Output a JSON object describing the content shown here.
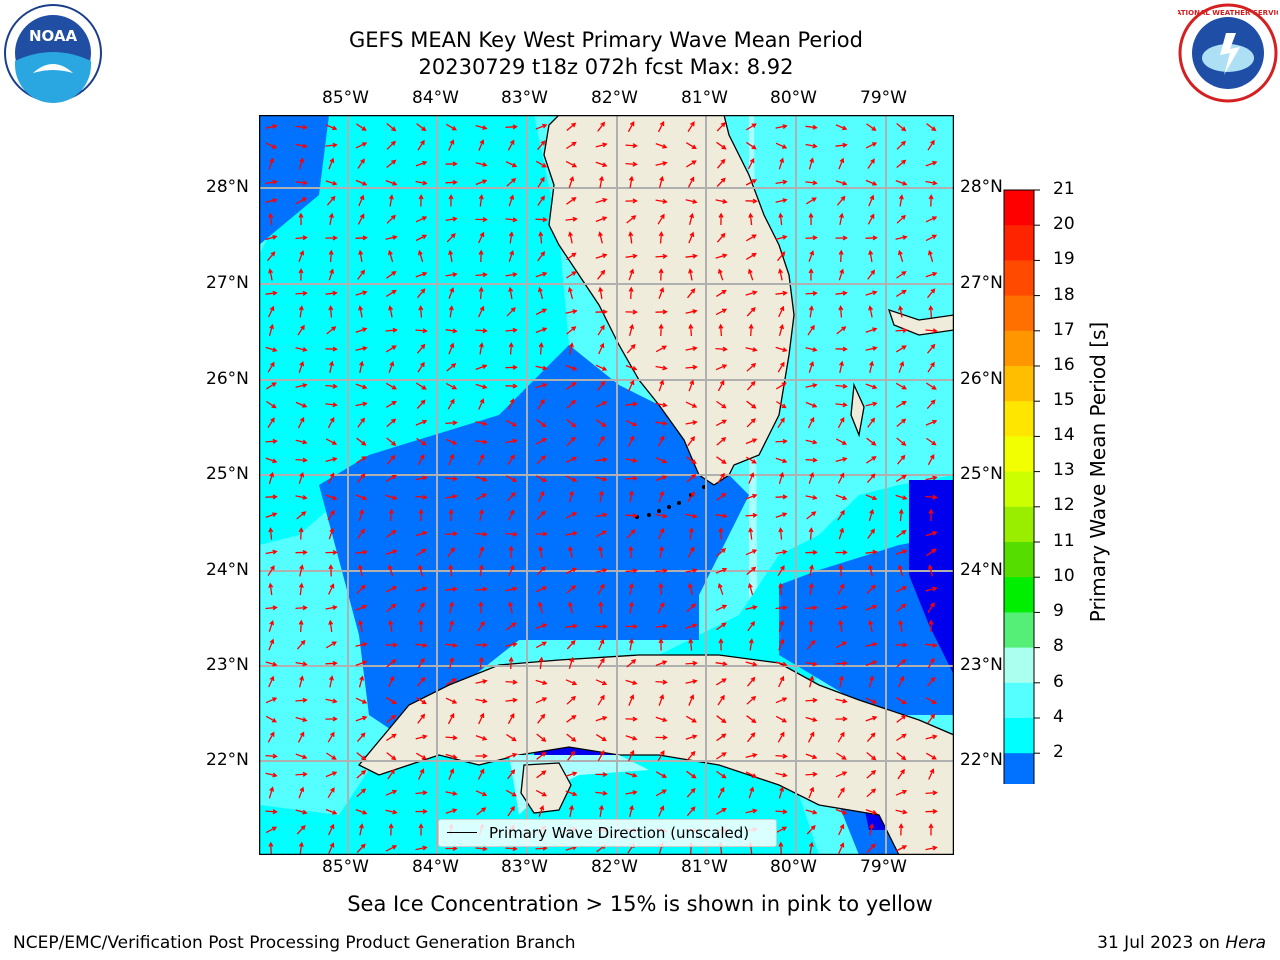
{
  "title": {
    "line1": "GEFS MEAN Key West Primary Wave Mean Period",
    "line2": "20230729 t18z 072h fcst   Max: 8.92"
  },
  "logos": {
    "left": {
      "icon": "noaa-logo",
      "text": "NOAA"
    },
    "right": {
      "icon": "nws-logo",
      "text": "NATIONAL WEATHER SERVICE"
    }
  },
  "map": {
    "lon_labels": [
      "85°W",
      "84°W",
      "83°W",
      "82°W",
      "81°W",
      "80°W",
      "79°W"
    ],
    "lat_labels": [
      "28°N",
      "27°N",
      "26°N",
      "25°N",
      "24°N",
      "23°N",
      "22°N"
    ],
    "colors": {
      "land": "#efecdc",
      "arrow": "#ff0000",
      "grid": "#b0b0b0"
    },
    "legend_label": "Primary Wave Direction (unscaled)"
  },
  "colorbar": {
    "label": "Primary Wave Mean Period [s]",
    "ticks": [
      "21",
      "20",
      "19",
      "18",
      "17",
      "16",
      "15",
      "14",
      "13",
      "12",
      "11",
      "10",
      "9",
      "8",
      "6",
      "4",
      "2"
    ],
    "colors": [
      "#ff0000",
      "#ff2400",
      "#ff4a00",
      "#ff7000",
      "#ff9600",
      "#ffbf00",
      "#ffe600",
      "#f2ff00",
      "#ccff00",
      "#99ee00",
      "#55dd00",
      "#00ee00",
      "#55ee77",
      "#aaffee",
      "#55ffff",
      "#00ffff",
      "#0072ff",
      "#0000ee"
    ]
  },
  "ice_note": "Sea Ice Concentration > 15% is shown in pink to yellow",
  "footer": {
    "left": "NCEP/EMC/Verification Post Processing Product Generation Branch",
    "right_date": "31 Jul 2023 on ",
    "right_host": "Hera"
  }
}
